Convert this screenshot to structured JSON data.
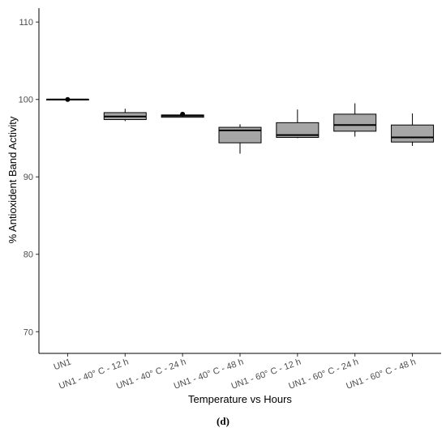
{
  "chart_data": {
    "type": "box",
    "xlabel": "Temperature vs Hours",
    "ylabel": "% Antioxident Band Activity",
    "ylim": [
      67.2,
      111.8
    ],
    "yticks": [
      70,
      80,
      90,
      100,
      110
    ],
    "grid": false,
    "legend": "none",
    "box_fill": "#a6a6a6",
    "categories": [
      "UN1",
      "UN1 - 40° C - 12 h",
      "UN1 - 40° C - 24 h",
      "UN1 - 40° C - 48 h",
      "UN1 - 60° C - 12 h",
      "UN1 - 60° C - 24 h",
      "UN1 - 60° C - 48 h"
    ],
    "boxes": [
      {
        "min": 100.0,
        "q1": 100.0,
        "median": 100.0,
        "q3": 100.0,
        "max": 100.0,
        "outliers": [
          100.0
        ]
      },
      {
        "min": 97.2,
        "q1": 97.4,
        "median": 97.8,
        "q3": 98.3,
        "max": 98.8,
        "outliers": []
      },
      {
        "min": 97.7,
        "q1": 97.7,
        "median": 97.9,
        "q3": 98.0,
        "max": 98.0,
        "outliers": [
          98.1
        ]
      },
      {
        "min": 93.0,
        "q1": 94.4,
        "median": 96.0,
        "q3": 96.4,
        "max": 96.8,
        "outliers": []
      },
      {
        "min": 95.0,
        "q1": 95.1,
        "median": 95.4,
        "q3": 97.0,
        "max": 98.7,
        "outliers": []
      },
      {
        "min": 95.2,
        "q1": 95.9,
        "median": 96.7,
        "q3": 98.1,
        "max": 99.5,
        "outliers": []
      },
      {
        "min": 94.0,
        "q1": 94.5,
        "median": 95.1,
        "q3": 96.7,
        "max": 98.2,
        "outliers": []
      }
    ]
  },
  "figure": {
    "panel_label": "(d)"
  }
}
